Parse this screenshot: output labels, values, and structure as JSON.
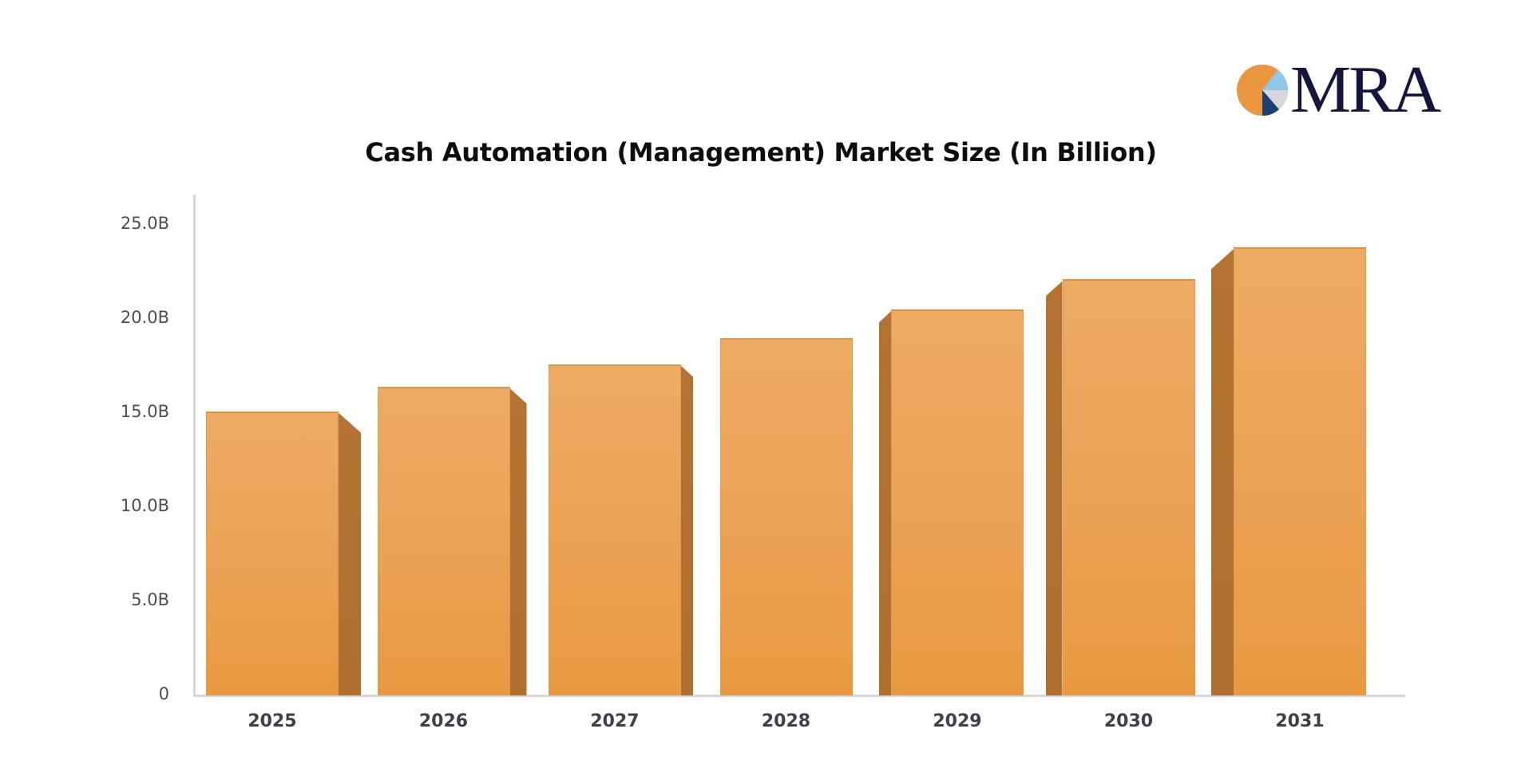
{
  "logo": {
    "text": "MRA",
    "pie_colors": [
      "#ea963e",
      "#8fc8ea",
      "#d6d7dc",
      "#1e3f73"
    ]
  },
  "chart_data": {
    "type": "bar",
    "title": "Cash Automation (Management) Market Size (In Billion)",
    "xlabel": "",
    "ylabel": "",
    "categories": [
      "2025",
      "2026",
      "2027",
      "2028",
      "2029",
      "2030",
      "2031"
    ],
    "values": [
      15.1,
      16.4,
      17.6,
      19.0,
      20.5,
      22.1,
      23.8
    ],
    "unit": "B",
    "ylim": [
      0,
      25
    ],
    "yticks": [
      0,
      5,
      10,
      15,
      20,
      25
    ],
    "ytick_labels": [
      "0",
      "5.0B",
      "10.0B",
      "15.0B",
      "20.0B",
      "25.0B"
    ],
    "grid": false,
    "legend": null,
    "style": "3d-bar",
    "bar_color": "#eba358",
    "bar_side_color": "#b27131",
    "axis_color": "#d6d7da"
  }
}
